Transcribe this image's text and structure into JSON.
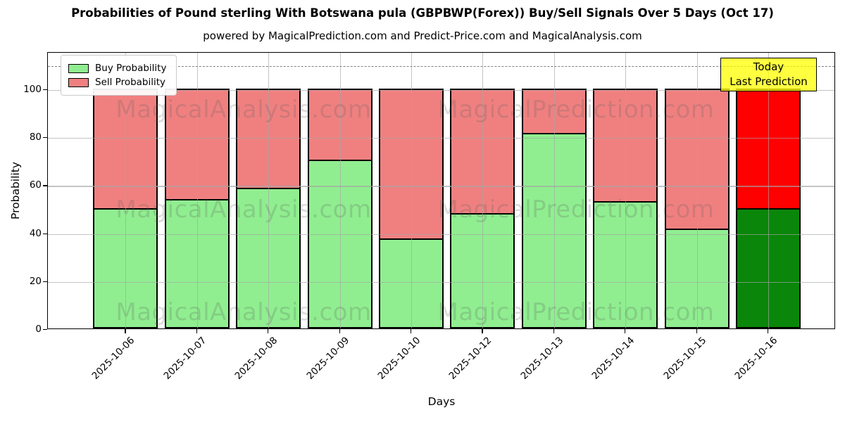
{
  "title": "Probabilities of Pound sterling With Botswana pula (GBPBWP(Forex)) Buy/Sell Signals Over 5 Days (Oct 17)",
  "subtitle": "powered by MagicalPrediction.com and Predict-Price.com and MagicalAnalysis.com",
  "legend": {
    "items": [
      {
        "label": "Buy Probability",
        "color": "#90ee90"
      },
      {
        "label": "Sell Probability",
        "color": "#f08080"
      }
    ]
  },
  "annotation": {
    "lines": [
      "Today",
      "Last Prediction"
    ],
    "bg_color": "#ffff00"
  },
  "watermarks": {
    "texts": [
      "MagicalAnalysis.com",
      "MagicalPrediction.com"
    ]
  },
  "chart_data": {
    "type": "bar",
    "stacked": true,
    "title": "Probabilities of Pound sterling With Botswana pula (GBPBWP(Forex)) Buy/Sell Signals Over 5 Days (Oct 17)",
    "xlabel": "Days",
    "ylabel": "Probability",
    "categories": [
      "2025-10-06",
      "2025-10-07",
      "2025-10-08",
      "2025-10-09",
      "2025-10-10",
      "2025-10-12",
      "2025-10-13",
      "2025-10-14",
      "2025-10-15",
      "2025-10-16"
    ],
    "series": [
      {
        "name": "Buy Probability",
        "color": "#90ee90",
        "today_color": "#0a860a",
        "values": [
          50,
          54,
          58.5,
          70.5,
          37.5,
          48,
          81.5,
          53,
          41.5,
          50
        ]
      },
      {
        "name": "Sell Probability",
        "color": "#f08080",
        "today_color": "#ff0000",
        "values": [
          50,
          46,
          41.5,
          29.5,
          62.5,
          52,
          18.5,
          47,
          58.5,
          50
        ]
      }
    ],
    "today_index": 9,
    "yticks": [
      0,
      20,
      40,
      60,
      80,
      100
    ],
    "ylim": [
      0,
      115.5
    ],
    "dashed_reference_line_y": 110,
    "grid": true,
    "legend_position": "upper left",
    "bar_edge_color": "#000000"
  }
}
